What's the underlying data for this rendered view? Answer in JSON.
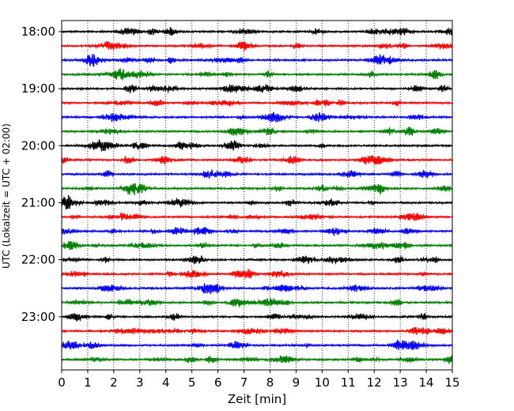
{
  "chart_data": {
    "type": "line",
    "title": "",
    "xlabel": "Zeit  [min]",
    "ylabel": "UTC (Lokalzeit = UTC + 02:00)",
    "xlim": [
      0,
      15
    ],
    "x_ticks": [
      0,
      1,
      2,
      3,
      4,
      5,
      6,
      7,
      8,
      9,
      10,
      11,
      12,
      13,
      14,
      15
    ],
    "y_ticks": [
      "18:00",
      "19:00",
      "20:00",
      "21:00",
      "22:00",
      "23:00"
    ],
    "trace_start": "18:00",
    "trace_interval_minutes": 15,
    "trace_count": 24,
    "trace_colors": [
      "#000000",
      "#ff0000",
      "#0000ff",
      "#007f00"
    ],
    "vertical_grid": "dotted",
    "legend": "none"
  }
}
